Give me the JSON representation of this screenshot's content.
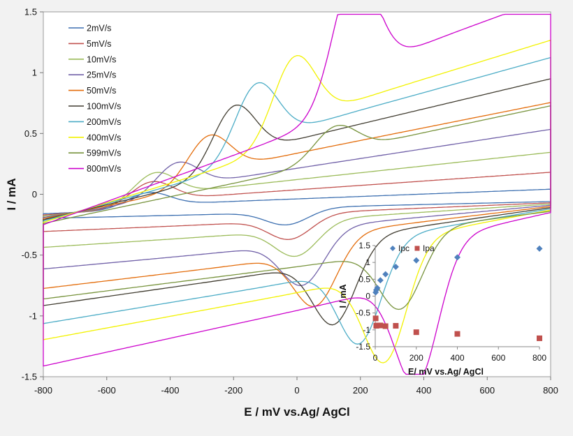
{
  "chart_data": [
    {
      "type": "line",
      "title": "",
      "xlabel": "E / mV vs.Ag/ AgCl",
      "ylabel": "I / mA",
      "xlim": [
        -800,
        800
      ],
      "ylim": [
        -1.5,
        1.5
      ],
      "xticks": [
        "-800",
        "-600",
        "-400",
        "-200",
        "0",
        "200",
        "400",
        "600",
        "800"
      ],
      "yticks": [
        "-1.5",
        "-1",
        "-0.5",
        "0",
        "0.5",
        "1",
        "1.5"
      ],
      "grid": false,
      "legend_position": "top-left",
      "series": [
        {
          "name": "2mV/s",
          "color": "#3c6fb0",
          "ipc": 0.12,
          "ipa": -0.12,
          "epc": -470,
          "epa": -30,
          "eps": 0.09,
          "slope": 0.0001
        },
        {
          "name": "5mV/s",
          "color": "#c0504d",
          "ipc": 0.18,
          "ipa": -0.18,
          "epc": -460,
          "epa": -20,
          "eps": 0.08,
          "slope": 0.00018
        },
        {
          "name": "10mV/s",
          "color": "#9bbb59",
          "ipc": 0.22,
          "ipa": -0.25,
          "epc": -450,
          "epa": 0,
          "eps": 0.07,
          "slope": 0.00028
        },
        {
          "name": "25mV/s",
          "color": "#7060a8",
          "ipc": 0.24,
          "ipa": -0.4,
          "epc": -380,
          "epa": 20,
          "eps": 0.06,
          "slope": 0.0004
        },
        {
          "name": "50mV/s",
          "color": "#e36c0a",
          "ipc": 0.35,
          "ipa": -0.5,
          "epc": -280,
          "epa": 60,
          "eps": 0.05,
          "slope": 0.00052
        },
        {
          "name": "100mV/s",
          "color": "#403c30",
          "ipc": 0.48,
          "ipa": -0.6,
          "epc": -200,
          "epa": 120,
          "eps": 0.04,
          "slope": 0.00062
        },
        {
          "name": "200mV/s",
          "color": "#4bacc6",
          "ipc": 0.55,
          "ipa": -0.72,
          "epc": -130,
          "epa": 200,
          "eps": 0.03,
          "slope": 0.00072
        },
        {
          "name": "400mV/s",
          "color": "#f2f200",
          "ipc": 0.62,
          "ipa": -0.85,
          "epc": -10,
          "epa": 280,
          "eps": 0.02,
          "slope": 0.0008
        },
        {
          "name": "599mV/s",
          "color": "#77933c",
          "ipc": 0.25,
          "ipa": -0.55,
          "epc": 120,
          "epa": 330,
          "eps": 0.01,
          "slope": 0.00055
        },
        {
          "name": "800mV/s",
          "color": "#cc00cc",
          "ipc": 1.0,
          "ipa": -1.0,
          "epc": 180,
          "epa": 380,
          "eps": 0.0,
          "slope": 0.00095
        }
      ]
    },
    {
      "type": "scatter",
      "title": "",
      "xlabel": "E/ mV vs.Ag/ AgCl",
      "ylabel": "I / mA",
      "xlim": [
        0,
        800
      ],
      "ylim": [
        -1.5,
        1.5
      ],
      "xticks": [
        "0",
        "200",
        "400",
        "600",
        "800"
      ],
      "yticks": [
        "-1.5",
        "-1",
        "-0.5",
        "0",
        "0.5",
        "1",
        "1.5"
      ],
      "legend_position": "top",
      "series": [
        {
          "name": "Ipc",
          "color": "#4f81bd",
          "marker": "diamond",
          "x": [
            2,
            5,
            10,
            25,
            50,
            100,
            200,
            400,
            800
          ],
          "y": [
            0.11,
            0.18,
            0.24,
            0.47,
            0.65,
            0.87,
            1.06,
            1.15,
            1.41
          ]
        },
        {
          "name": "Ipa",
          "color": "#c0504d",
          "marker": "square",
          "x": [
            2,
            5,
            10,
            25,
            50,
            100,
            200,
            400,
            800
          ],
          "y": [
            -0.66,
            -0.88,
            -0.87,
            -0.87,
            -0.89,
            -0.88,
            -1.07,
            -1.12,
            -1.25
          ]
        }
      ]
    }
  ]
}
